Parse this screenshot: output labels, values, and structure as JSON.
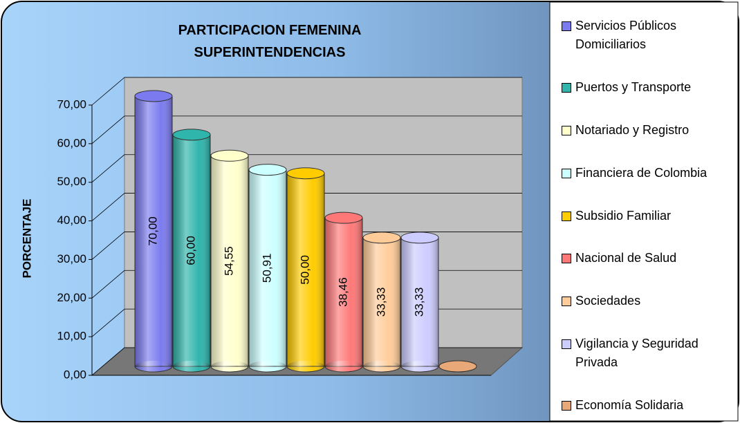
{
  "chart_data": {
    "type": "bar3d",
    "title": "PARTICIPACION FEMENINA SUPERINTENDENCIAS",
    "y_label": "PORCENTAJE",
    "categories": [
      "Servicios Públicos Domiciliarios",
      "Puertos y Transporte",
      "Notariado y Registro",
      "Financiera de Colombia",
      "Subsidio Familiar",
      "Nacional de Salud",
      "Sociedades",
      "Vigilancia y Seguridad Privada",
      "Economía Solidaria"
    ],
    "values": [
      70,
      60,
      54.55,
      50.91,
      50,
      38.46,
      33.33,
      33.33,
      0
    ],
    "value_labels": [
      "70,00",
      "60,00",
      "54,55",
      "50,91",
      "50,00",
      "38,46",
      "33,33",
      "33,33",
      null
    ],
    "colors": [
      "#7b7bef",
      "#2fb5ac",
      "#ffffcc",
      "#ccffff",
      "#ffcc00",
      "#ff7878",
      "#ffcc99",
      "#ccccff",
      "#e8a878"
    ],
    "ylim": [
      0,
      70
    ],
    "yticks": [
      {
        "value": 0,
        "label": "0,00"
      },
      {
        "value": 10,
        "label": "10,00"
      },
      {
        "value": 20,
        "label": "20,00"
      },
      {
        "value": 30,
        "label": "30,00"
      },
      {
        "value": 40,
        "label": "40,00"
      },
      {
        "value": 50,
        "label": "50,00"
      },
      {
        "value": 60,
        "label": "60,00"
      },
      {
        "value": 70,
        "label": "70,00"
      }
    ],
    "grid": true,
    "legend": "right"
  }
}
